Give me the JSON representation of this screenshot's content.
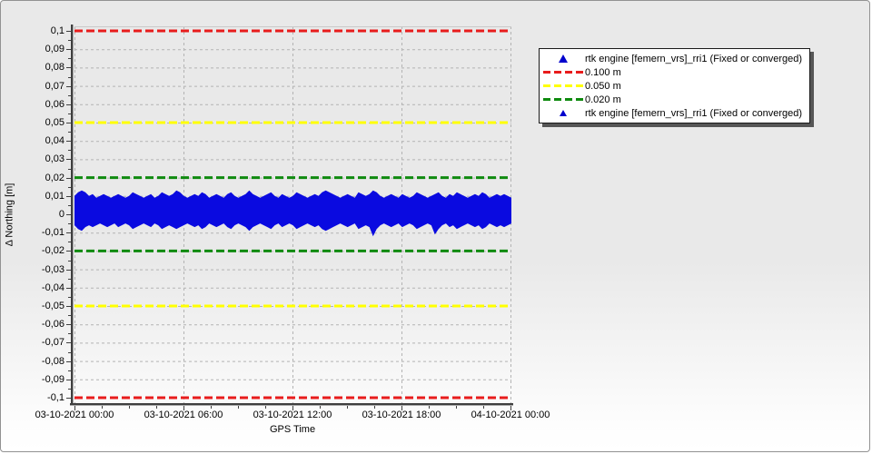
{
  "chart_data": {
    "type": "scatter",
    "title": "",
    "xlabel": "GPS Time",
    "ylabel": "Δ Northing [m]",
    "x_tick_labels": [
      "03-10-2021 00:00",
      "03-10-2021 06:00",
      "03-10-2021 12:00",
      "03-10-2021 18:00",
      "04-10-2021 00:00"
    ],
    "y_tick_values": [
      0.1,
      0.09,
      0.08,
      0.07,
      0.06,
      0.05,
      0.04,
      0.03,
      0.02,
      0.01,
      0,
      -0.01,
      -0.02,
      -0.03,
      -0.04,
      -0.05,
      -0.06,
      -0.07,
      -0.08,
      -0.09,
      -0.1
    ],
    "y_tick_labels": [
      "0,1",
      "0,09",
      "0,08",
      "0,07",
      "0,06",
      "0,05",
      "0,04",
      "0,03",
      "0,02",
      "0,01",
      "0",
      "-0,01",
      "-0,02",
      "-0,03",
      "-0,04",
      "-0,05",
      "-0,06",
      "-0,07",
      "-0,08",
      "-0,09",
      "-0,1"
    ],
    "ylim": [
      -0.103,
      0.103
    ],
    "grid": true,
    "legend_position": "upper right outside",
    "colors": {
      "background": "#e9e9e9",
      "gridline": "#b3b3b3",
      "data_blue": "#0a0ae0",
      "limit_red": "#e81c1c",
      "limit_yellow": "#ffff00",
      "limit_green": "#0f8a0f"
    },
    "series": [
      {
        "name": "rtk engine [femern_vrs]_rri1 (Fixed or converged)",
        "type": "noise-band",
        "color": "#0a0ae0",
        "x_range": [
          "03-10-2021 00:00",
          "04-10-2021 00:00"
        ],
        "envelope_units": "mm",
        "envelope_top_mm": [
          10,
          12,
          13,
          12,
          10,
          11,
          9,
          10,
          11,
          10,
          9,
          10,
          11,
          10,
          9,
          10,
          12,
          11,
          10,
          9,
          10,
          11,
          9,
          10,
          12,
          11,
          10,
          11,
          13,
          12,
          10,
          9,
          10,
          11,
          10,
          12,
          11,
          9,
          10,
          11,
          10,
          9,
          11,
          12,
          10,
          9,
          10,
          11,
          13,
          11,
          10,
          9,
          10,
          11,
          12,
          10,
          9,
          11,
          10,
          9,
          10,
          12,
          11,
          10,
          9,
          10,
          11,
          10,
          12,
          13,
          12,
          11,
          10,
          9,
          10,
          11,
          10,
          9,
          12,
          11,
          10,
          11,
          13,
          12,
          10,
          9,
          10,
          11,
          10,
          9,
          11,
          10,
          9,
          10,
          12,
          11,
          10,
          9,
          10,
          11,
          12,
          10,
          9,
          11,
          10,
          12,
          11,
          10,
          9,
          10,
          11,
          10,
          12,
          11,
          9,
          10,
          11,
          10,
          11,
          10,
          9
        ],
        "envelope_bottom_mm": [
          -6,
          -8,
          -9,
          -7,
          -6,
          -7,
          -6,
          -5,
          -6,
          -7,
          -6,
          -5,
          -7,
          -6,
          -5,
          -6,
          -8,
          -7,
          -6,
          -5,
          -6,
          -7,
          -5,
          -6,
          -8,
          -7,
          -6,
          -7,
          -8,
          -7,
          -6,
          -5,
          -6,
          -7,
          -6,
          -8,
          -7,
          -5,
          -6,
          -7,
          -6,
          -5,
          -7,
          -8,
          -6,
          -5,
          -6,
          -7,
          -9,
          -7,
          -6,
          -5,
          -6,
          -7,
          -8,
          -6,
          -5,
          -7,
          -6,
          -5,
          -6,
          -8,
          -7,
          -6,
          -5,
          -6,
          -7,
          -6,
          -8,
          -9,
          -8,
          -7,
          -6,
          -5,
          -6,
          -7,
          -6,
          -5,
          -8,
          -7,
          -6,
          -7,
          -12,
          -8,
          -6,
          -5,
          -6,
          -7,
          -6,
          -5,
          -7,
          -6,
          -5,
          -6,
          -8,
          -7,
          -6,
          -5,
          -6,
          -11,
          -8,
          -6,
          -5,
          -7,
          -6,
          -8,
          -7,
          -6,
          -5,
          -6,
          -7,
          -6,
          -8,
          -7,
          -5,
          -6,
          -7,
          -6,
          -7,
          -6,
          -5
        ]
      },
      {
        "name": "0.100 m",
        "type": "hline",
        "style": "dashed",
        "color": "#e81c1c",
        "values": [
          0.1,
          -0.1
        ]
      },
      {
        "name": "0.050 m",
        "type": "hline",
        "style": "dashed",
        "color": "#ffff00",
        "values": [
          0.05,
          -0.05
        ]
      },
      {
        "name": "0.020 m",
        "type": "hline",
        "style": "dashed",
        "color": "#0f8a0f",
        "values": [
          0.02,
          -0.02
        ]
      },
      {
        "name": "rtk engine [femern_vrs]_rri1 (Fixed or converged)",
        "type": "noise-band",
        "note": "duplicate legend entry"
      }
    ]
  },
  "legend": {
    "items": [
      {
        "marker": "triangle",
        "marker_size": "large",
        "color": "#0000cd",
        "label": "rtk engine [femern_vrs]_rri1 (Fixed or converged)"
      },
      {
        "marker": "dashes",
        "color": "#e81c1c",
        "label": "0.100 m"
      },
      {
        "marker": "dashes",
        "color": "#ffff00",
        "label": "0.050 m"
      },
      {
        "marker": "dashes",
        "color": "#0f8a0f",
        "label": "0.020 m"
      },
      {
        "marker": "triangle",
        "marker_size": "small",
        "color": "#0000cd",
        "label": "rtk engine [femern_vrs]_rri1 (Fixed or converged)"
      }
    ]
  }
}
